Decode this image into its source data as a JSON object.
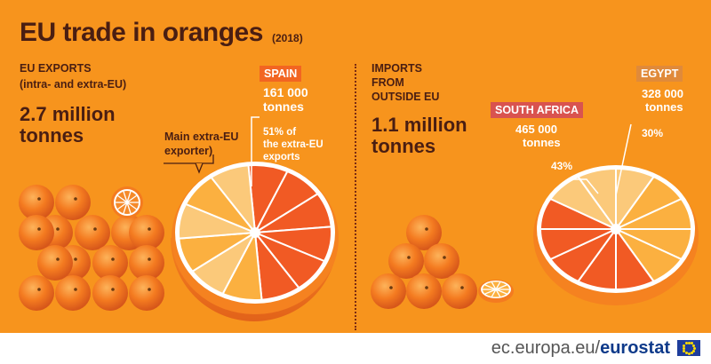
{
  "title": "EU trade in oranges",
  "year": "(2018)",
  "exports": {
    "heading_line1": "EU EXPORTS",
    "heading_line2": "(intra- and extra-EU)",
    "total_line1": "2.7 million",
    "total_line2": "tonnes",
    "callout_line1": "Main extra-EU",
    "callout_line2": "exporter)",
    "spain_tag": "SPAIN",
    "spain_amount_line1": "161 000",
    "spain_amount_line2": "tonnes",
    "spain_share_line1": "51% of",
    "spain_share_line2": "the extra-EU",
    "spain_share_line3": "exports"
  },
  "imports": {
    "heading_line1": "IMPORTS",
    "heading_line2": "FROM",
    "heading_line3": "OUTSIDE EU",
    "total_line1": "1.1 million",
    "total_line2": "tonnes",
    "sa_tag": "SOUTH AFRICA",
    "sa_amount_line1": "465 000",
    "sa_amount_line2": "tonnes",
    "sa_share": "43%",
    "eg_tag": "EGYPT",
    "eg_amount_line1": "328 000",
    "eg_amount_line2": "tonnes",
    "eg_share": "30%"
  },
  "footer": {
    "url_prefix": "ec.europa.eu/",
    "url_brand": "eurostat"
  },
  "colors": {
    "background": "#f7941d",
    "dark_text": "#4a1e12",
    "spain_tag": "#f26522",
    "south_africa_tag": "#d9534f",
    "egypt_tag": "#e08a3a",
    "segment_highlight": "#f15a24",
    "segment_secondary": "#fbb040",
    "segment_pale": "#fbc97a"
  },
  "chart_data": [
    {
      "type": "pie",
      "title": "EU EXPORTS",
      "total": "2.7 million tonnes",
      "slices": [
        {
          "label": "SPAIN",
          "value": 51,
          "tonnes": 161000
        }
      ]
    },
    {
      "type": "pie",
      "title": "IMPORTS FROM OUTSIDE EU",
      "total": "1.1 million tonnes",
      "slices": [
        {
          "label": "SOUTH AFRICA",
          "value": 43,
          "tonnes": 465000
        },
        {
          "label": "EGYPT",
          "value": 30,
          "tonnes": 328000
        }
      ]
    }
  ]
}
